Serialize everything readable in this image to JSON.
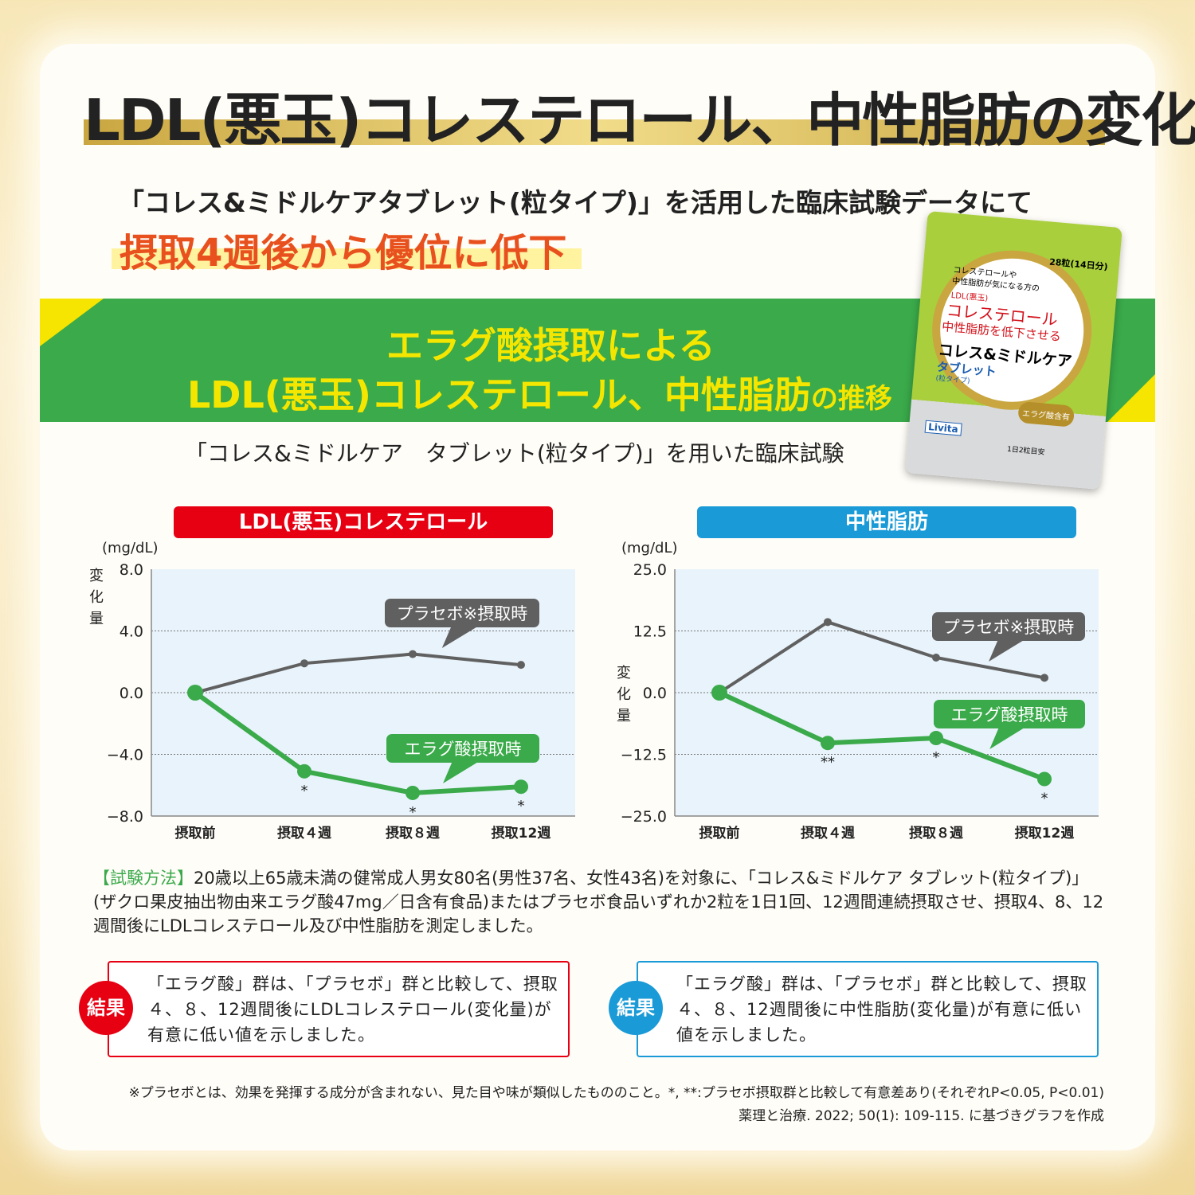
{
  "title": "LDL(悪玉)コレステロール、中性脂肪の変化",
  "subtitle": "「コレス&ミドルケアタブレット(粒タイプ)」を活用した臨床試験データにて",
  "lead": "摂取4週後から優位に低下",
  "band": {
    "line1": "エラグ酸摂取による",
    "line2": "LDL(悪玉)コレステロール、中性脂肪",
    "line2_suffix": "の推移"
  },
  "trial": "「コレス&ミドルケア　タブレット(粒タイプ)」を用いた臨床試験",
  "package": {
    "count": "28粒(14日分)",
    "text1": "コレステロールや",
    "text2": "中性脂肪が気になる方の",
    "text3": "LDL(悪玉)",
    "text4": "コレステロール",
    "text5": "中性脂肪を低下させる",
    "brand": "コレス&ミドルケア",
    "product": "タブレット",
    "type": "(粒タイプ)",
    "badge": "エラグ酸含有",
    "logo": "Livita",
    "dose": "1日2粒目安"
  },
  "colors": {
    "placebo": "#606060",
    "ellagic": "#3aaa4a",
    "ldl_header": "#e60012",
    "tg_header": "#1a9ad6",
    "plot_bg": "#e8f3fb"
  },
  "chart_data": [
    {
      "type": "line",
      "title": "LDL(悪玉)コレステロール",
      "unit": "(mg/dL)",
      "ylabel": "変化量",
      "categories": [
        "摂取前",
        "摂取４週",
        "摂取８週",
        "摂取12週"
      ],
      "ylim": [
        -8.0,
        8.0
      ],
      "yticks": [
        "8.0",
        "4.0",
        "0.0",
        "−4.0",
        "−8.0"
      ],
      "ytick_values": [
        8,
        4,
        0,
        -4,
        -8
      ],
      "grid": true,
      "series": [
        {
          "name": "プラセボ※摂取時",
          "values": [
            0,
            1.9,
            2.5,
            1.8
          ]
        },
        {
          "name": "エラグ酸摂取時",
          "values": [
            0,
            -5.1,
            -6.5,
            -6.1
          ],
          "significance": [
            "",
            "*",
            "*",
            "*"
          ]
        }
      ]
    },
    {
      "type": "line",
      "title": "中性脂肪",
      "unit": "(mg/dL)",
      "ylabel": "変化量",
      "categories": [
        "摂取前",
        "摂取４週",
        "摂取８週",
        "摂取12週"
      ],
      "ylim": [
        -25.0,
        25.0
      ],
      "yticks": [
        "25.0",
        "12.5",
        "0.0",
        "−12.5",
        "−25.0"
      ],
      "ytick_values": [
        25,
        12.5,
        0,
        -12.5,
        -25
      ],
      "grid": true,
      "series": [
        {
          "name": "プラセボ※摂取時",
          "values": [
            0,
            14.3,
            7.1,
            3.0
          ]
        },
        {
          "name": "エラグ酸摂取時",
          "values": [
            0,
            -10.2,
            -9.2,
            -17.5
          ],
          "significance": [
            "",
            "**",
            "*",
            "*"
          ]
        }
      ]
    }
  ],
  "method": {
    "label": "【試験方法】",
    "text": "20歳以上65歳未満の健常成人男女80名(男性37名、女性43名)を対象に、「コレス&ミドルケア タブレット(粒タイプ)」(ザクロ果皮抽出物由来エラグ酸47mg／日含有食品)またはプラセボ食品いずれか2粒を1日1回、12週間連続摂取させ、摂取4、8、12週間後にLDLコレステロール及び中性脂肪を測定しました。"
  },
  "results": [
    {
      "badge": "結果",
      "text": "「エラグ酸」群は、「プラセボ」群と比較して、摂取４、８、12週間後にLDLコレステロール(変化量)が有意に低い値を示しました。"
    },
    {
      "badge": "結果",
      "text": "「エラグ酸」群は、「プラセボ」群と比較して、摂取４、８、12週間後に中性脂肪(変化量)が有意に低い値を示しました。"
    }
  ],
  "footnote1": "※プラセボとは、効果を発揮する成分が含まれない、見た目や味が類似したもののこと。*, **:プラセボ摂取群と比較して有意差あり(それぞれP<0.05, P<0.01)",
  "footnote2": "薬理と治療. 2022; 50(1): 109-115. に基づきグラフを作成"
}
